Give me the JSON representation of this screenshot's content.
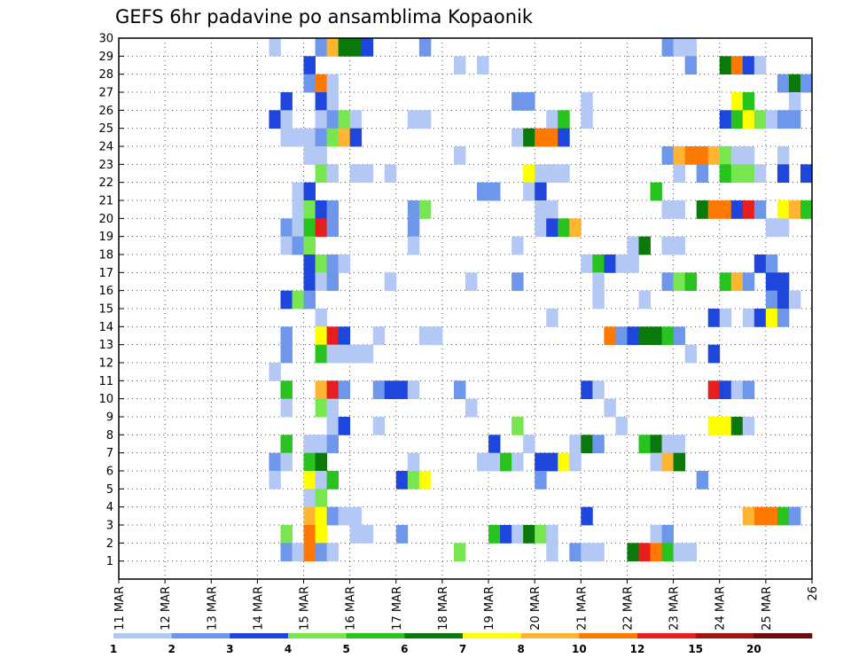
{
  "chart_data": {
    "type": "heatmap",
    "title": "GEFS 6hr padavine po ansamblima Kopaonik",
    "xlabel": "",
    "ylabel": "",
    "x_tick_labels": [
      "11 MAR",
      "12 MAR",
      "13 MAR",
      "14 MAR",
      "15 MAR",
      "16 MAR",
      "17 MAR",
      "18 MAR",
      "19 MAR",
      "20 MAR",
      "21 MAR",
      "22 MAR",
      "23 MAR",
      "24 MAR",
      "25 MAR",
      "26"
    ],
    "y_tick_labels": [
      "1",
      "2",
      "3",
      "4",
      "5",
      "6",
      "7",
      "8",
      "9",
      "10",
      "11",
      "12",
      "13",
      "14",
      "15",
      "16",
      "17",
      "18",
      "19",
      "20",
      "21",
      "22",
      "23",
      "24",
      "25",
      "26",
      "27",
      "28",
      "29",
      "30"
    ],
    "x_steps_per_day": 4,
    "member_range": [
      1,
      30
    ],
    "grid": true,
    "legend_position": "bottom",
    "colorbar_labels": [
      "1",
      "2",
      "3",
      "4",
      "5",
      "6",
      "7",
      "8",
      "10",
      "12",
      "15",
      "20"
    ],
    "colorbar_colors": [
      "#b4c8f5",
      "#6e96eb",
      "#1e46dc",
      "#78e650",
      "#28c31e",
      "#0a780a",
      "#ffff00",
      "#ffb432",
      "#ff7800",
      "#e61e1e",
      "#a01414",
      "#6e0a0a"
    ],
    "cells": [
      [
        30,
        13,
        0
      ],
      [
        30,
        17,
        1
      ],
      [
        30,
        18,
        7
      ],
      [
        30,
        19,
        5
      ],
      [
        30,
        20,
        5
      ],
      [
        30,
        21,
        2
      ],
      [
        30,
        26,
        1
      ],
      [
        30,
        47,
        1
      ],
      [
        30,
        48,
        0
      ],
      [
        30,
        49,
        0
      ],
      [
        29,
        16,
        2
      ],
      [
        29,
        29,
        0
      ],
      [
        29,
        31,
        0
      ],
      [
        29,
        49,
        1
      ],
      [
        29,
        52,
        5
      ],
      [
        29,
        53,
        8
      ],
      [
        29,
        54,
        2
      ],
      [
        29,
        55,
        0
      ],
      [
        28,
        16,
        1
      ],
      [
        28,
        17,
        8
      ],
      [
        28,
        18,
        0
      ],
      [
        28,
        57,
        1
      ],
      [
        28,
        58,
        5
      ],
      [
        28,
        59,
        1
      ],
      [
        27,
        14,
        2
      ],
      [
        27,
        17,
        2
      ],
      [
        27,
        18,
        0
      ],
      [
        27,
        34,
        1
      ],
      [
        27,
        35,
        1
      ],
      [
        27,
        40,
        0
      ],
      [
        27,
        53,
        6
      ],
      [
        27,
        54,
        4
      ],
      [
        27,
        58,
        0
      ],
      [
        26,
        13,
        2
      ],
      [
        26,
        14,
        0
      ],
      [
        26,
        17,
        0
      ],
      [
        26,
        18,
        1
      ],
      [
        26,
        19,
        3
      ],
      [
        26,
        20,
        0
      ],
      [
        26,
        25,
        0
      ],
      [
        26,
        26,
        0
      ],
      [
        26,
        37,
        0
      ],
      [
        26,
        38,
        4
      ],
      [
        26,
        40,
        0
      ],
      [
        26,
        52,
        2
      ],
      [
        26,
        53,
        4
      ],
      [
        26,
        54,
        6
      ],
      [
        26,
        55,
        3
      ],
      [
        26,
        56,
        0
      ],
      [
        26,
        57,
        1
      ],
      [
        26,
        58,
        1
      ],
      [
        25,
        14,
        0
      ],
      [
        25,
        15,
        0
      ],
      [
        25,
        16,
        0
      ],
      [
        25,
        17,
        1
      ],
      [
        25,
        18,
        3
      ],
      [
        25,
        19,
        7
      ],
      [
        25,
        20,
        2
      ],
      [
        25,
        34,
        0
      ],
      [
        25,
        35,
        5
      ],
      [
        25,
        36,
        8
      ],
      [
        25,
        37,
        8
      ],
      [
        25,
        38,
        2
      ],
      [
        24,
        16,
        0
      ],
      [
        24,
        17,
        0
      ],
      [
        24,
        29,
        0
      ],
      [
        24,
        47,
        1
      ],
      [
        24,
        48,
        7
      ],
      [
        24,
        49,
        8
      ],
      [
        24,
        50,
        8
      ],
      [
        24,
        51,
        7
      ],
      [
        24,
        52,
        3
      ],
      [
        24,
        53,
        0
      ],
      [
        24,
        54,
        0
      ],
      [
        24,
        57,
        0
      ],
      [
        23,
        17,
        3
      ],
      [
        23,
        18,
        0
      ],
      [
        23,
        20,
        0
      ],
      [
        23,
        21,
        0
      ],
      [
        23,
        23,
        0
      ],
      [
        23,
        35,
        6
      ],
      [
        23,
        36,
        0
      ],
      [
        23,
        37,
        0
      ],
      [
        23,
        38,
        0
      ],
      [
        23,
        48,
        0
      ],
      [
        23,
        50,
        1
      ],
      [
        23,
        52,
        4
      ],
      [
        23,
        53,
        3
      ],
      [
        23,
        54,
        3
      ],
      [
        23,
        55,
        0
      ],
      [
        23,
        57,
        2
      ],
      [
        23,
        59,
        2
      ],
      [
        22,
        15,
        0
      ],
      [
        22,
        16,
        2
      ],
      [
        22,
        31,
        1
      ],
      [
        22,
        32,
        1
      ],
      [
        22,
        35,
        0
      ],
      [
        22,
        36,
        2
      ],
      [
        22,
        46,
        4
      ],
      [
        21,
        15,
        0
      ],
      [
        21,
        16,
        3
      ],
      [
        21,
        17,
        2
      ],
      [
        21,
        18,
        1
      ],
      [
        21,
        25,
        1
      ],
      [
        21,
        26,
        3
      ],
      [
        21,
        36,
        0
      ],
      [
        21,
        37,
        0
      ],
      [
        21,
        47,
        0
      ],
      [
        21,
        48,
        0
      ],
      [
        21,
        50,
        5
      ],
      [
        21,
        51,
        8
      ],
      [
        21,
        52,
        8
      ],
      [
        21,
        53,
        2
      ],
      [
        21,
        54,
        9
      ],
      [
        21,
        55,
        1
      ],
      [
        21,
        57,
        6
      ],
      [
        21,
        58,
        7
      ],
      [
        21,
        59,
        4
      ],
      [
        20,
        14,
        1
      ],
      [
        20,
        15,
        0
      ],
      [
        20,
        16,
        4
      ],
      [
        20,
        17,
        9
      ],
      [
        20,
        18,
        1
      ],
      [
        20,
        25,
        1
      ],
      [
        20,
        36,
        0
      ],
      [
        20,
        37,
        2
      ],
      [
        20,
        38,
        4
      ],
      [
        20,
        39,
        7
      ],
      [
        20,
        56,
        0
      ],
      [
        20,
        57,
        0
      ],
      [
        19,
        14,
        0
      ],
      [
        19,
        15,
        1
      ],
      [
        19,
        16,
        3
      ],
      [
        19,
        25,
        0
      ],
      [
        19,
        34,
        0
      ],
      [
        19,
        44,
        0
      ],
      [
        19,
        45,
        5
      ],
      [
        19,
        47,
        0
      ],
      [
        19,
        48,
        0
      ],
      [
        18,
        16,
        2
      ],
      [
        18,
        17,
        3
      ],
      [
        18,
        18,
        1
      ],
      [
        18,
        19,
        0
      ],
      [
        18,
        40,
        0
      ],
      [
        18,
        41,
        4
      ],
      [
        18,
        42,
        2
      ],
      [
        18,
        43,
        0
      ],
      [
        18,
        44,
        0
      ],
      [
        18,
        55,
        2
      ],
      [
        18,
        56,
        1
      ],
      [
        17,
        16,
        2
      ],
      [
        17,
        17,
        0
      ],
      [
        17,
        18,
        1
      ],
      [
        17,
        23,
        0
      ],
      [
        17,
        30,
        0
      ],
      [
        17,
        34,
        1
      ],
      [
        17,
        41,
        0
      ],
      [
        17,
        47,
        1
      ],
      [
        17,
        48,
        3
      ],
      [
        17,
        49,
        4
      ],
      [
        17,
        52,
        4
      ],
      [
        17,
        53,
        7
      ],
      [
        17,
        54,
        1
      ],
      [
        17,
        56,
        2
      ],
      [
        17,
        57,
        2
      ],
      [
        16,
        14,
        2
      ],
      [
        16,
        15,
        3
      ],
      [
        16,
        16,
        1
      ],
      [
        16,
        41,
        0
      ],
      [
        16,
        45,
        0
      ],
      [
        16,
        56,
        1
      ],
      [
        16,
        57,
        2
      ],
      [
        16,
        58,
        0
      ],
      [
        15,
        17,
        0
      ],
      [
        15,
        37,
        0
      ],
      [
        15,
        51,
        2
      ],
      [
        15,
        52,
        0
      ],
      [
        15,
        54,
        0
      ],
      [
        15,
        55,
        2
      ],
      [
        15,
        56,
        6
      ],
      [
        15,
        57,
        1
      ],
      [
        14,
        14,
        1
      ],
      [
        14,
        17,
        6
      ],
      [
        14,
        18,
        9
      ],
      [
        14,
        19,
        2
      ],
      [
        14,
        22,
        0
      ],
      [
        14,
        26,
        0
      ],
      [
        14,
        27,
        0
      ],
      [
        14,
        42,
        8
      ],
      [
        14,
        43,
        1
      ],
      [
        14,
        44,
        2
      ],
      [
        14,
        45,
        5
      ],
      [
        14,
        46,
        5
      ],
      [
        14,
        47,
        4
      ],
      [
        14,
        48,
        1
      ],
      [
        13,
        14,
        1
      ],
      [
        13,
        17,
        4
      ],
      [
        13,
        18,
        0
      ],
      [
        13,
        19,
        0
      ],
      [
        13,
        20,
        0
      ],
      [
        13,
        21,
        0
      ],
      [
        13,
        49,
        0
      ],
      [
        13,
        51,
        2
      ],
      [
        12,
        13,
        0
      ],
      [
        11,
        14,
        4
      ],
      [
        11,
        17,
        7
      ],
      [
        11,
        18,
        9
      ],
      [
        11,
        19,
        1
      ],
      [
        11,
        22,
        1
      ],
      [
        11,
        23,
        2
      ],
      [
        11,
        24,
        2
      ],
      [
        11,
        25,
        0
      ],
      [
        11,
        29,
        1
      ],
      [
        11,
        40,
        2
      ],
      [
        11,
        41,
        0
      ],
      [
        11,
        51,
        9
      ],
      [
        11,
        52,
        2
      ],
      [
        11,
        53,
        0
      ],
      [
        11,
        54,
        1
      ],
      [
        10,
        14,
        0
      ],
      [
        10,
        17,
        3
      ],
      [
        10,
        18,
        0
      ],
      [
        10,
        30,
        0
      ],
      [
        10,
        42,
        0
      ],
      [
        9,
        18,
        0
      ],
      [
        9,
        19,
        2
      ],
      [
        9,
        22,
        0
      ],
      [
        9,
        34,
        3
      ],
      [
        9,
        43,
        0
      ],
      [
        9,
        51,
        6
      ],
      [
        9,
        52,
        6
      ],
      [
        9,
        53,
        5
      ],
      [
        9,
        54,
        0
      ],
      [
        8,
        14,
        4
      ],
      [
        8,
        16,
        0
      ],
      [
        8,
        17,
        0
      ],
      [
        8,
        18,
        1
      ],
      [
        8,
        32,
        2
      ],
      [
        8,
        35,
        0
      ],
      [
        8,
        39,
        0
      ],
      [
        8,
        40,
        5
      ],
      [
        8,
        41,
        1
      ],
      [
        8,
        45,
        4
      ],
      [
        8,
        46,
        5
      ],
      [
        8,
        47,
        0
      ],
      [
        8,
        48,
        0
      ],
      [
        7,
        13,
        1
      ],
      [
        7,
        14,
        0
      ],
      [
        7,
        16,
        4
      ],
      [
        7,
        17,
        5
      ],
      [
        7,
        25,
        0
      ],
      [
        7,
        31,
        0
      ],
      [
        7,
        32,
        0
      ],
      [
        7,
        33,
        4
      ],
      [
        7,
        34,
        0
      ],
      [
        7,
        36,
        2
      ],
      [
        7,
        37,
        2
      ],
      [
        7,
        38,
        6
      ],
      [
        7,
        39,
        0
      ],
      [
        7,
        46,
        0
      ],
      [
        7,
        47,
        7
      ],
      [
        7,
        48,
        5
      ],
      [
        6,
        13,
        0
      ],
      [
        6,
        16,
        6
      ],
      [
        6,
        17,
        0
      ],
      [
        6,
        18,
        4
      ],
      [
        6,
        24,
        2
      ],
      [
        6,
        25,
        3
      ],
      [
        6,
        26,
        6
      ],
      [
        6,
        36,
        1
      ],
      [
        6,
        50,
        1
      ],
      [
        5,
        16,
        0
      ],
      [
        5,
        17,
        3
      ],
      [
        4,
        16,
        7
      ],
      [
        4,
        17,
        6
      ],
      [
        4,
        18,
        1
      ],
      [
        4,
        19,
        0
      ],
      [
        4,
        20,
        0
      ],
      [
        4,
        40,
        2
      ],
      [
        4,
        54,
        7
      ],
      [
        4,
        55,
        8
      ],
      [
        4,
        56,
        8
      ],
      [
        4,
        57,
        4
      ],
      [
        4,
        58,
        1
      ],
      [
        3,
        14,
        3
      ],
      [
        3,
        16,
        8
      ],
      [
        3,
        17,
        6
      ],
      [
        3,
        20,
        0
      ],
      [
        3,
        21,
        0
      ],
      [
        3,
        24,
        1
      ],
      [
        3,
        32,
        4
      ],
      [
        3,
        33,
        2
      ],
      [
        3,
        34,
        0
      ],
      [
        3,
        35,
        5
      ],
      [
        3,
        36,
        3
      ],
      [
        3,
        37,
        0
      ],
      [
        3,
        46,
        0
      ],
      [
        3,
        47,
        1
      ],
      [
        2,
        14,
        1
      ],
      [
        2,
        15,
        0
      ],
      [
        2,
        16,
        8
      ],
      [
        2,
        17,
        1
      ],
      [
        2,
        18,
        0
      ],
      [
        2,
        29,
        3
      ],
      [
        2,
        37,
        0
      ],
      [
        2,
        39,
        1
      ],
      [
        2,
        40,
        0
      ],
      [
        2,
        41,
        0
      ],
      [
        2,
        44,
        5
      ],
      [
        2,
        45,
        9
      ],
      [
        2,
        46,
        8
      ],
      [
        2,
        47,
        4
      ],
      [
        2,
        48,
        0
      ],
      [
        2,
        49,
        0
      ]
    ]
  }
}
